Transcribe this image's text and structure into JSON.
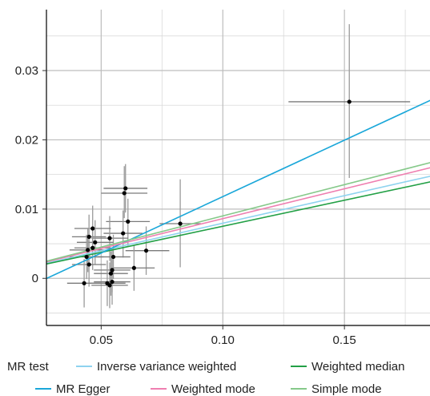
{
  "chart_data": {
    "type": "scatter",
    "title": "",
    "xlabel": "",
    "ylabel": "",
    "xlim": [
      0.0275,
      0.1855
    ],
    "ylim": [
      -0.0068,
      0.0388
    ],
    "x_ticks": [
      0.05,
      0.1,
      0.15
    ],
    "x_tick_labels": [
      "0.05",
      "0.10",
      "0.15"
    ],
    "y_ticks": [
      0,
      0.01,
      0.02,
      0.03
    ],
    "y_tick_labels": [
      "0",
      "0.01",
      "0.02",
      "0.03"
    ],
    "grid": true,
    "legend_title": "MR test",
    "legend_position": "bottom",
    "points": [
      {
        "x": 0.152,
        "y": 0.0255,
        "x_lo": 0.127,
        "x_hi": 0.177,
        "y_lo": 0.0145,
        "y_hi": 0.0367
      },
      {
        "x": 0.0825,
        "y": 0.0079,
        "x_lo": 0.074,
        "x_hi": 0.091,
        "y_lo": 0.0016,
        "y_hi": 0.0143
      },
      {
        "x": 0.06,
        "y": 0.013,
        "x_lo": 0.051,
        "x_hi": 0.069,
        "y_lo": 0.0095,
        "y_hi": 0.0165
      },
      {
        "x": 0.0595,
        "y": 0.0123,
        "x_lo": 0.05,
        "x_hi": 0.069,
        "y_lo": 0.0087,
        "y_hi": 0.0162
      },
      {
        "x": 0.061,
        "y": 0.0082,
        "x_lo": 0.052,
        "x_hi": 0.07,
        "y_lo": 0.0047,
        "y_hi": 0.0115
      },
      {
        "x": 0.059,
        "y": 0.0065,
        "x_lo": 0.051,
        "x_hi": 0.067,
        "y_lo": 0.003,
        "y_hi": 0.0098
      },
      {
        "x": 0.0685,
        "y": 0.004,
        "x_lo": 0.06,
        "x_hi": 0.078,
        "y_lo": 0.0005,
        "y_hi": 0.0075
      },
      {
        "x": 0.0535,
        "y": 0.0058,
        "x_lo": 0.046,
        "x_hi": 0.061,
        "y_lo": 0.0025,
        "y_hi": 0.009
      },
      {
        "x": 0.055,
        "y": 0.0031,
        "x_lo": 0.048,
        "x_hi": 0.062,
        "y_lo": -0.0001,
        "y_hi": 0.0063
      },
      {
        "x": 0.0635,
        "y": 0.0015,
        "x_lo": 0.055,
        "x_hi": 0.072,
        "y_lo": -0.0018,
        "y_hi": 0.0048
      },
      {
        "x": 0.0465,
        "y": 0.0072,
        "x_lo": 0.039,
        "x_hi": 0.054,
        "y_lo": 0.004,
        "y_hi": 0.0105
      },
      {
        "x": 0.045,
        "y": 0.006,
        "x_lo": 0.038,
        "x_hi": 0.052,
        "y_lo": 0.0028,
        "y_hi": 0.0092
      },
      {
        "x": 0.0475,
        "y": 0.0052,
        "x_lo": 0.04,
        "x_hi": 0.055,
        "y_lo": 0.002,
        "y_hi": 0.0084
      },
      {
        "x": 0.0465,
        "y": 0.0044,
        "x_lo": 0.039,
        "x_hi": 0.054,
        "y_lo": 0.0012,
        "y_hi": 0.0076
      },
      {
        "x": 0.0445,
        "y": 0.0041,
        "x_lo": 0.037,
        "x_hi": 0.052,
        "y_lo": 0.0009,
        "y_hi": 0.0073
      },
      {
        "x": 0.044,
        "y": 0.0031,
        "x_lo": 0.037,
        "x_hi": 0.051,
        "y_lo": -0.0001,
        "y_hi": 0.0063
      },
      {
        "x": 0.045,
        "y": 0.002,
        "x_lo": 0.038,
        "x_hi": 0.052,
        "y_lo": -0.0012,
        "y_hi": 0.0052
      },
      {
        "x": 0.0545,
        "y": 0.0012,
        "x_lo": 0.047,
        "x_hi": 0.062,
        "y_lo": -0.002,
        "y_hi": 0.0044
      },
      {
        "x": 0.054,
        "y": 0.0007,
        "x_lo": 0.047,
        "x_hi": 0.061,
        "y_lo": -0.0025,
        "y_hi": 0.0039
      },
      {
        "x": 0.043,
        "y": -0.0007,
        "x_lo": 0.036,
        "x_hi": 0.05,
        "y_lo": -0.0042,
        "y_hi": 0.0028
      },
      {
        "x": 0.0525,
        "y": -0.0007,
        "x_lo": 0.045,
        "x_hi": 0.06,
        "y_lo": -0.004,
        "y_hi": 0.0026
      },
      {
        "x": 0.0535,
        "y": -0.001,
        "x_lo": 0.046,
        "x_hi": 0.061,
        "y_lo": -0.0043,
        "y_hi": 0.0023
      },
      {
        "x": 0.0545,
        "y": -0.0005,
        "x_lo": 0.047,
        "x_hi": 0.062,
        "y_lo": -0.0038,
        "y_hi": 0.0028
      }
    ],
    "series": [
      {
        "name": "Inverse variance weighted",
        "color": "#8ed3ef",
        "slope": 0.0796,
        "intercept": 0.0
      },
      {
        "name": "Weighted median",
        "color": "#23a046",
        "slope": 0.0752,
        "intercept": 0.0
      },
      {
        "name": "MR Egger",
        "color": "#1aa7d9",
        "slope": 0.163,
        "intercept": -0.0045
      },
      {
        "name": "Weighted mode",
        "color": "#ef7fb0",
        "slope": 0.0862,
        "intercept": 0.0
      },
      {
        "name": "Simple mode",
        "color": "#86c98a",
        "slope": 0.0902,
        "intercept": 0.0
      }
    ]
  }
}
